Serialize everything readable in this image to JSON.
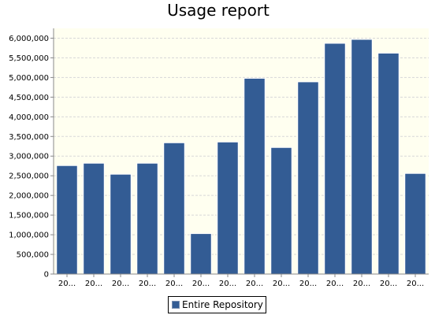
{
  "chart_data": {
    "type": "bar",
    "title": "Usage report",
    "xlabel": "",
    "ylabel": "",
    "categories": [
      "20...",
      "20...",
      "20...",
      "20...",
      "20...",
      "20...",
      "20...",
      "20...",
      "20...",
      "20...",
      "20...",
      "20...",
      "20...",
      "20..."
    ],
    "series": [
      {
        "name": "Entire Repository",
        "values": [
          2760000,
          2820000,
          2540000,
          2820000,
          3340000,
          1030000,
          3360000,
          4980000,
          3220000,
          4890000,
          5870000,
          5970000,
          5620000,
          2560000
        ]
      }
    ],
    "ylim": [
      0,
      6250000
    ],
    "yticks": [
      0,
      500000,
      1000000,
      1500000,
      2000000,
      2500000,
      3000000,
      3500000,
      4000000,
      4500000,
      5000000,
      5500000,
      6000000
    ],
    "ytick_labels": [
      "0",
      "500,000",
      "1,000,000",
      "1,500,000",
      "2,000,000",
      "2,500,000",
      "3,000,000",
      "3,500,000",
      "4,000,000",
      "4,500,000",
      "5,000,000",
      "5,500,000",
      "6,000,000"
    ],
    "grid": true,
    "legend_position": "bottom-center",
    "colors": {
      "bar": "#335c94",
      "plot_background": "#fffff0",
      "grid": "#d8d8d8"
    }
  }
}
